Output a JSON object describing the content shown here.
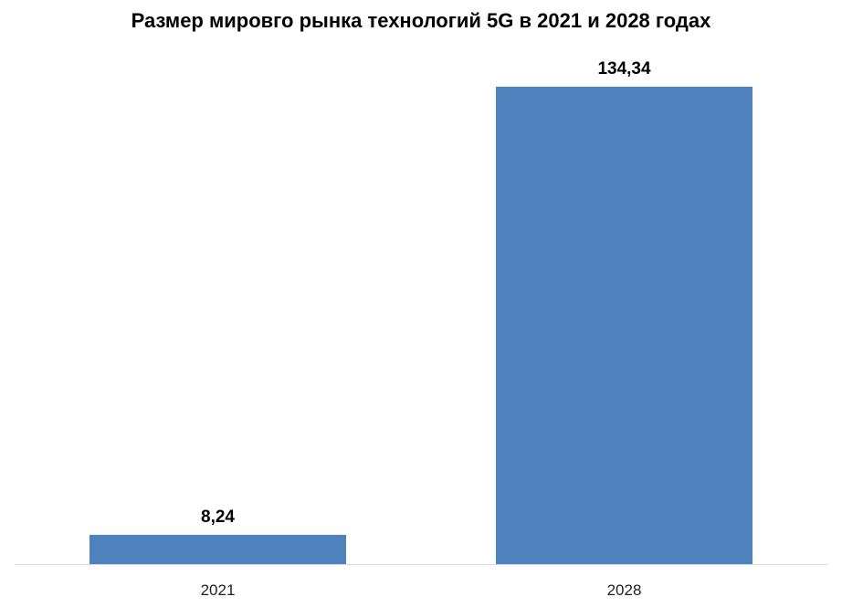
{
  "chart_data": {
    "type": "bar",
    "title": "Размер мировго рынка технологий 5G в 2021 и 2028 годах",
    "categories": [
      "2021",
      "2028"
    ],
    "values": [
      8.24,
      134.34
    ],
    "data_labels": [
      "8,24",
      "134,34"
    ],
    "xlabel": "",
    "ylabel": "",
    "ylim": [
      0,
      134.34
    ],
    "grid": false,
    "legend": "none",
    "bar_color": "#4F81BD",
    "axis_color": "#D9D9D9"
  }
}
